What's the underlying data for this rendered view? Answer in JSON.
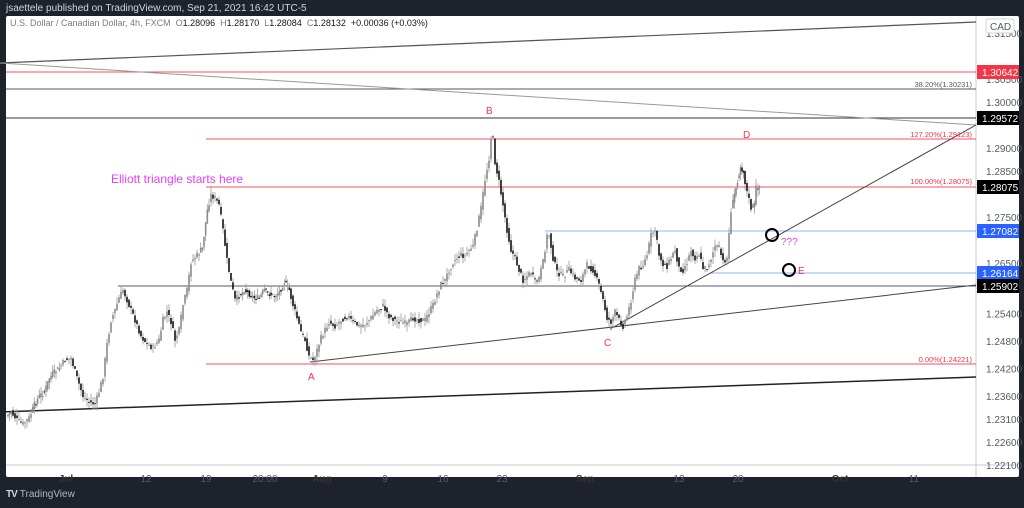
{
  "header": {
    "publisher": "jsaettele published on TradingView.com, Sep 21, 2021 16:42 UTC-5"
  },
  "legend": {
    "symbol": "U.S. Dollar / Canadian Dollar, 4h, FXCM",
    "open_label": "O",
    "open": "1.28096",
    "high_label": "H",
    "high": "1.28170",
    "low_label": "L",
    "low": "1.28084",
    "close_label": "C",
    "close": "1.28132",
    "change": "+0.00036 (+0.03%)"
  },
  "footer": {
    "brand": "TradingView",
    "logo": "TV"
  },
  "chart_data": {
    "type": "candlestick",
    "title": "U.S. Dollar / Canadian Dollar, 4h, FXCM",
    "currency": "CAD",
    "y_ticks": [
      "1.31500",
      "1.30500",
      "1.30000",
      "1.29000",
      "1.28500",
      "1.27500",
      "1.26500",
      "1.25400",
      "1.24800",
      "1.24200",
      "1.23600",
      "1.23100",
      "1.22600",
      "1.22100"
    ],
    "x_ticks": [
      {
        "label": "Jul",
        "x": 66,
        "bold": true
      },
      {
        "label": "12",
        "x": 146
      },
      {
        "label": "19",
        "x": 206
      },
      {
        "label": "20:00",
        "x": 265
      },
      {
        "label": "Aug",
        "x": 322,
        "bold": true
      },
      {
        "label": "9",
        "x": 385
      },
      {
        "label": "16",
        "x": 443
      },
      {
        "label": "23",
        "x": 502
      },
      {
        "label": "Sep",
        "x": 585,
        "bold": true
      },
      {
        "label": "13",
        "x": 679
      },
      {
        "label": "20",
        "x": 738
      },
      {
        "label": "Oct",
        "x": 840,
        "bold": true
      },
      {
        "label": "11",
        "x": 914
      }
    ],
    "price_badges": [
      {
        "value": "1.30642",
        "y": 72,
        "bg": "#f23645",
        "fg": "#ffffff"
      },
      {
        "value": "1.29572",
        "y": 118,
        "bg": "#000000",
        "fg": "#ffffff"
      },
      {
        "value": "1.28075",
        "y": 187,
        "bg": "#000000",
        "fg": "#ffffff"
      },
      {
        "value": "1.27082",
        "y": 231,
        "bg": "#2962ff",
        "fg": "#ffffff"
      },
      {
        "value": "1.26164",
        "y": 273,
        "bg": "#2962ff",
        "fg": "#ffffff"
      },
      {
        "value": "1.25902",
        "y": 286,
        "bg": "#000000",
        "fg": "#ffffff"
      }
    ],
    "fib_labels": [
      {
        "text": "38.20%(1.30231)",
        "y": 89,
        "color": "#555a66"
      },
      {
        "text": "127.20%(1.29123)",
        "y": 139,
        "color": "#f23645"
      },
      {
        "text": "100.00%(1.28075)",
        "y": 186,
        "color": "#f23645"
      },
      {
        "text": "0.00%(1.24221)",
        "y": 364,
        "color": "#f23645"
      }
    ],
    "horizontal_lines": [
      {
        "y": 72,
        "x1": 0,
        "color": "#f7525f",
        "label": "1.30642"
      },
      {
        "y": 89,
        "x1": 0,
        "color": "#555a66",
        "label": "1.30231"
      },
      {
        "y": 118,
        "x1": 0,
        "color": "#333333",
        "label": "1.29572"
      },
      {
        "y": 139,
        "x1": 206,
        "color": "#f7525f",
        "label": "1.29123"
      },
      {
        "y": 187,
        "x1": 206,
        "color": "#f7525f",
        "label": "1.28075"
      },
      {
        "y": 231,
        "x1": 545,
        "color": "#90b4f0",
        "label": "1.27082"
      },
      {
        "y": 273,
        "x1": 710,
        "color": "#90b4f0",
        "label": "1.26164"
      },
      {
        "y": 286,
        "x1": 118,
        "color": "#555a66",
        "label": "1.25902"
      },
      {
        "y": 364,
        "x1": 206,
        "color": "#f7525f",
        "label": "1.24221"
      }
    ],
    "trend_lines": [
      {
        "x1": 0,
        "y1": 63,
        "x2": 976,
        "y2": 22,
        "color": "#555555",
        "w": 1.2
      },
      {
        "x1": 0,
        "y1": 63,
        "x2": 976,
        "y2": 125,
        "color": "#999999",
        "w": 1
      },
      {
        "x1": 0,
        "y1": 412,
        "x2": 976,
        "y2": 377,
        "color": "#222222",
        "w": 1.5
      },
      {
        "x1": 310,
        "y1": 362,
        "x2": 976,
        "y2": 285,
        "color": "#444444",
        "w": 1
      },
      {
        "x1": 610,
        "y1": 329,
        "x2": 976,
        "y2": 125,
        "color": "#444444",
        "w": 1
      }
    ],
    "wave_labels": [
      {
        "text": "A",
        "x": 308,
        "y": 380,
        "color": "#f23645"
      },
      {
        "text": "B",
        "x": 486,
        "y": 114,
        "color": "#f23645"
      },
      {
        "text": "C",
        "x": 604,
        "y": 346,
        "color": "#f23645"
      },
      {
        "text": "D",
        "x": 743,
        "y": 138,
        "color": "#f23645"
      },
      {
        "text": "E",
        "x": 798,
        "y": 274,
        "color": "#f23645"
      },
      {
        "text": "???",
        "x": 781,
        "y": 245,
        "color": "#e040fb"
      }
    ],
    "annotation": {
      "text": "Elliott triangle starts here",
      "x": 111,
      "y": 183,
      "color": "#e040fb"
    },
    "circles": [
      {
        "x": 772,
        "y": 235,
        "r": 6
      },
      {
        "x": 789,
        "y": 270,
        "r": 6
      }
    ],
    "price_path": [
      [
        7,
        416
      ],
      [
        12,
        412
      ],
      [
        18,
        420
      ],
      [
        24,
        424
      ],
      [
        30,
        418
      ],
      [
        35,
        405
      ],
      [
        40,
        396
      ],
      [
        45,
        392
      ],
      [
        50,
        378
      ],
      [
        55,
        372
      ],
      [
        60,
        368
      ],
      [
        66,
        360
      ],
      [
        72,
        358
      ],
      [
        78,
        378
      ],
      [
        84,
        396
      ],
      [
        90,
        402
      ],
      [
        96,
        404
      ],
      [
        100,
        392
      ],
      [
        104,
        376
      ],
      [
        108,
        344
      ],
      [
        112,
        320
      ],
      [
        116,
        310
      ],
      [
        120,
        298
      ],
      [
        124,
        290
      ],
      [
        130,
        305
      ],
      [
        136,
        320
      ],
      [
        142,
        336
      ],
      [
        148,
        344
      ],
      [
        154,
        348
      ],
      [
        160,
        340
      ],
      [
        164,
        320
      ],
      [
        168,
        312
      ],
      [
        172,
        322
      ],
      [
        176,
        340
      ],
      [
        180,
        330
      ],
      [
        184,
        305
      ],
      [
        188,
        290
      ],
      [
        192,
        262
      ],
      [
        198,
        255
      ],
      [
        203,
        248
      ],
      [
        208,
        210
      ],
      [
        212,
        195
      ],
      [
        216,
        198
      ],
      [
        220,
        205
      ],
      [
        224,
        230
      ],
      [
        228,
        260
      ],
      [
        232,
        282
      ],
      [
        236,
        300
      ],
      [
        240,
        296
      ],
      [
        245,
        290
      ],
      [
        250,
        294
      ],
      [
        255,
        298
      ],
      [
        260,
        298
      ],
      [
        265,
        290
      ],
      [
        270,
        294
      ],
      [
        275,
        296
      ],
      [
        280,
        292
      ],
      [
        285,
        282
      ],
      [
        290,
        290
      ],
      [
        294,
        305
      ],
      [
        298,
        318
      ],
      [
        302,
        332
      ],
      [
        306,
        340
      ],
      [
        310,
        356
      ],
      [
        314,
        360
      ],
      [
        318,
        350
      ],
      [
        322,
        338
      ],
      [
        326,
        330
      ],
      [
        330,
        322
      ],
      [
        336,
        326
      ],
      [
        342,
        320
      ],
      [
        348,
        316
      ],
      [
        354,
        322
      ],
      [
        360,
        326
      ],
      [
        366,
        324
      ],
      [
        372,
        318
      ],
      [
        378,
        310
      ],
      [
        384,
        306
      ],
      [
        390,
        316
      ],
      [
        396,
        320
      ],
      [
        402,
        322
      ],
      [
        408,
        324
      ],
      [
        414,
        318
      ],
      [
        420,
        320
      ],
      [
        426,
        320
      ],
      [
        430,
        312
      ],
      [
        434,
        305
      ],
      [
        438,
        294
      ],
      [
        442,
        284
      ],
      [
        446,
        280
      ],
      [
        450,
        270
      ],
      [
        454,
        262
      ],
      [
        458,
        258
      ],
      [
        462,
        255
      ],
      [
        466,
        256
      ],
      [
        470,
        250
      ],
      [
        474,
        246
      ],
      [
        478,
        228
      ],
      [
        482,
        208
      ],
      [
        486,
        180
      ],
      [
        490,
        158
      ],
      [
        492,
        138
      ],
      [
        494,
        140
      ],
      [
        496,
        162
      ],
      [
        500,
        182
      ],
      [
        504,
        205
      ],
      [
        508,
        230
      ],
      [
        512,
        250
      ],
      [
        516,
        258
      ],
      [
        520,
        270
      ],
      [
        524,
        280
      ],
      [
        528,
        276
      ],
      [
        532,
        272
      ],
      [
        536,
        282
      ],
      [
        540,
        278
      ],
      [
        544,
        262
      ],
      [
        548,
        236
      ],
      [
        550,
        235
      ],
      [
        554,
        258
      ],
      [
        558,
        272
      ],
      [
        564,
        276
      ],
      [
        570,
        270
      ],
      [
        576,
        278
      ],
      [
        582,
        280
      ],
      [
        588,
        265
      ],
      [
        594,
        270
      ],
      [
        600,
        285
      ],
      [
        604,
        300
      ],
      [
        608,
        318
      ],
      [
        612,
        322
      ],
      [
        616,
        312
      ],
      [
        620,
        320
      ],
      [
        624,
        326
      ],
      [
        628,
        316
      ],
      [
        632,
        300
      ],
      [
        636,
        280
      ],
      [
        640,
        268
      ],
      [
        644,
        265
      ],
      [
        648,
        255
      ],
      [
        652,
        235
      ],
      [
        656,
        230
      ],
      [
        660,
        255
      ],
      [
        664,
        264
      ],
      [
        668,
        266
      ],
      [
        672,
        258
      ],
      [
        676,
        250
      ],
      [
        680,
        268
      ],
      [
        684,
        270
      ],
      [
        688,
        262
      ],
      [
        692,
        250
      ],
      [
        696,
        258
      ],
      [
        700,
        254
      ],
      [
        704,
        268
      ],
      [
        708,
        268
      ],
      [
        712,
        258
      ],
      [
        716,
        246
      ],
      [
        720,
        248
      ],
      [
        724,
        262
      ],
      [
        728,
        258
      ],
      [
        732,
        210
      ],
      [
        735,
        195
      ],
      [
        738,
        180
      ],
      [
        741,
        166
      ],
      [
        744,
        172
      ],
      [
        748,
        192
      ],
      [
        752,
        208
      ],
      [
        755,
        205
      ],
      [
        757,
        188
      ],
      [
        760,
        186
      ]
    ],
    "ylim": [
      1.221,
      1.315
    ],
    "xlabel": "",
    "ylabel": "CAD"
  }
}
